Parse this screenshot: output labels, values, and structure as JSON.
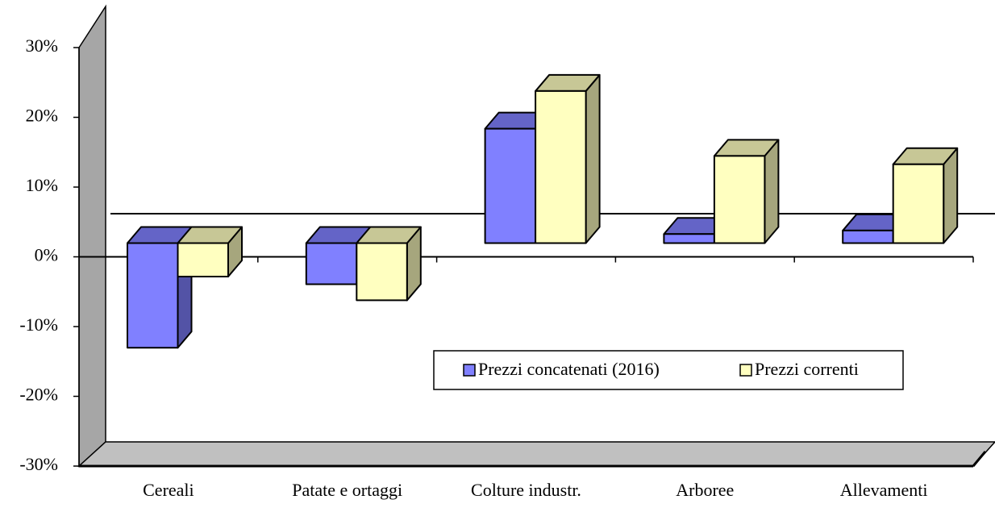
{
  "chart_data": {
    "type": "bar3d",
    "categories": [
      "Cereali",
      "Patate e ortaggi",
      "Colture industr.",
      "Arboree",
      "Allevamenti"
    ],
    "series": [
      {
        "name": "Prezzi concatenati (2016)",
        "color": "#8080ff",
        "values": [
          -15.0,
          -5.9,
          16.4,
          1.3,
          1.8
        ]
      },
      {
        "name": "Prezzi correnti",
        "color": "#ffffc0",
        "values": [
          -4.8,
          -8.2,
          21.8,
          12.5,
          11.3
        ]
      }
    ],
    "ylim": [
      -30,
      30
    ],
    "yticks": [
      {
        "value": -30,
        "label": "-30%"
      },
      {
        "value": -20,
        "label": "-20%"
      },
      {
        "value": -10,
        "label": "-10%"
      },
      {
        "value": 0,
        "label": "0%"
      },
      {
        "value": 10,
        "label": "10%"
      },
      {
        "value": 20,
        "label": "20%"
      },
      {
        "value": 30,
        "label": "30%"
      }
    ],
    "legend": "bottom-right"
  }
}
